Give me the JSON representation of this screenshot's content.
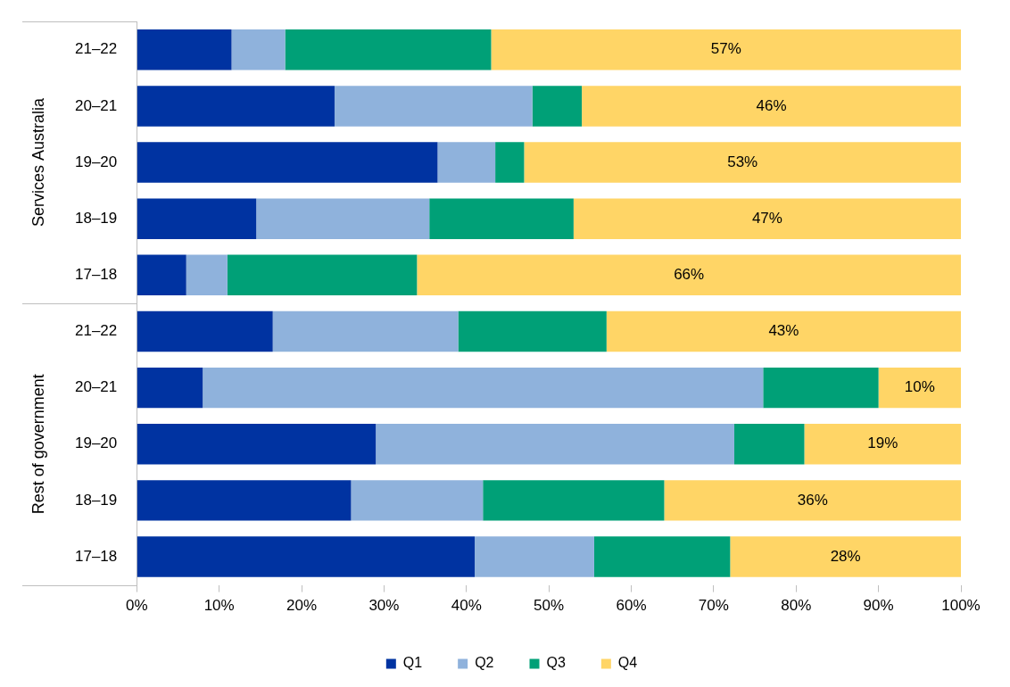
{
  "chart_data": {
    "type": "bar",
    "orientation": "horizontal",
    "stacked": true,
    "grid": false,
    "legend": "bottom",
    "data_labels": true,
    "groups": [
      {
        "name": "Services Australia",
        "categories": [
          "21–22",
          "20–21",
          "19–20",
          "18–19",
          "17–18"
        ]
      },
      {
        "name": "Rest of government",
        "categories": [
          "21–22",
          "20–21",
          "19–20",
          "18–19",
          "17–18"
        ]
      }
    ],
    "series": [
      {
        "name": "Q1",
        "color": "#0033a1",
        "values": [
          11.5,
          24,
          36.5,
          14.5,
          6,
          16.5,
          8,
          29,
          26,
          41
        ]
      },
      {
        "name": "Q2",
        "color": "#8fb2dc",
        "values": [
          6.5,
          24,
          7,
          21,
          5,
          22.5,
          68,
          43.5,
          16,
          14.5
        ]
      },
      {
        "name": "Q3",
        "color": "#00a077",
        "values": [
          25,
          6,
          3.5,
          17.5,
          23,
          18,
          14,
          8.5,
          22,
          16.5
        ]
      },
      {
        "name": "Q4",
        "color": "#ffd566",
        "values": [
          57,
          46,
          53,
          47,
          66,
          43,
          10,
          19,
          36,
          28
        ],
        "value_labels": [
          "57%",
          "46%",
          "53%",
          "47%",
          "66%",
          "43%",
          "10%",
          "19%",
          "36%",
          "28%"
        ]
      }
    ],
    "xlim": [
      0,
      100
    ],
    "xticks": [
      {
        "value": 0,
        "label": "0%"
      },
      {
        "value": 10,
        "label": "10%"
      },
      {
        "value": 20,
        "label": "20%"
      },
      {
        "value": 30,
        "label": "30%"
      },
      {
        "value": 40,
        "label": "40%"
      },
      {
        "value": 50,
        "label": "50%"
      },
      {
        "value": 60,
        "label": "60%"
      },
      {
        "value": 70,
        "label": "70%"
      },
      {
        "value": 80,
        "label": "80%"
      },
      {
        "value": 90,
        "label": "90%"
      },
      {
        "value": 100,
        "label": "100%"
      }
    ]
  }
}
